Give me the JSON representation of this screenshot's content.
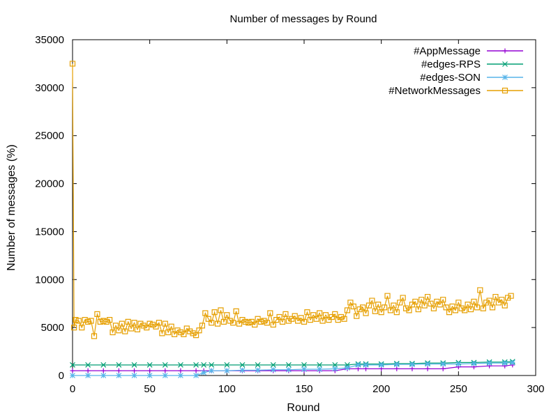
{
  "chart_data": {
    "type": "line",
    "title": "Number of messages by Round",
    "xlabel": "Round",
    "ylabel": "Number of messages (%)",
    "xlim": [
      0,
      300
    ],
    "ylim": [
      0,
      35000
    ],
    "xticks": [
      0,
      50,
      100,
      150,
      200,
      250,
      300
    ],
    "yticks": [
      0,
      5000,
      10000,
      15000,
      20000,
      25000,
      30000,
      35000
    ],
    "grid": false,
    "legend_position": "top-right",
    "series": [
      {
        "name": "#AppMessage",
        "color": "#9400d3",
        "marker": "plus",
        "x": [
          0,
          10,
          20,
          30,
          40,
          50,
          60,
          70,
          80,
          85,
          90,
          100,
          110,
          120,
          130,
          140,
          150,
          160,
          170,
          178,
          185,
          190,
          200,
          210,
          220,
          230,
          240,
          250,
          260,
          270,
          280,
          285
        ],
        "y": [
          500,
          500,
          500,
          500,
          500,
          500,
          500,
          500,
          500,
          500,
          500,
          500,
          500,
          500,
          500,
          500,
          500,
          500,
          500,
          700,
          700,
          700,
          700,
          700,
          700,
          700,
          700,
          900,
          900,
          1000,
          1000,
          1100
        ]
      },
      {
        "name": "#edges-RPS",
        "color": "#009e73",
        "marker": "cross",
        "x": [
          0,
          10,
          20,
          30,
          40,
          50,
          60,
          70,
          80,
          85,
          90,
          100,
          110,
          120,
          130,
          140,
          150,
          160,
          170,
          178,
          185,
          190,
          200,
          210,
          220,
          230,
          240,
          250,
          260,
          270,
          280,
          285
        ],
        "y": [
          1100,
          1100,
          1100,
          1100,
          1100,
          1100,
          1100,
          1100,
          1100,
          1100,
          1100,
          1100,
          1100,
          1100,
          1100,
          1100,
          1100,
          1100,
          1100,
          1100,
          1200,
          1200,
          1200,
          1250,
          1250,
          1300,
          1300,
          1350,
          1350,
          1400,
          1400,
          1450
        ]
      },
      {
        "name": "#edges-SON",
        "color": "#56b4e9",
        "marker": "star",
        "x": [
          0,
          10,
          20,
          30,
          40,
          50,
          60,
          70,
          80,
          85,
          90,
          100,
          110,
          120,
          130,
          140,
          150,
          160,
          170,
          178,
          185,
          190,
          200,
          210,
          220,
          230,
          240,
          250,
          260,
          270,
          280,
          285
        ],
        "y": [
          0,
          0,
          0,
          0,
          0,
          0,
          0,
          0,
          0,
          300,
          500,
          500,
          550,
          550,
          600,
          600,
          650,
          650,
          700,
          800,
          1100,
          1100,
          1100,
          1150,
          1150,
          1200,
          1200,
          1200,
          1250,
          1300,
          1300,
          1350
        ]
      },
      {
        "name": "#NetworkMessages",
        "color": "#e69f00",
        "marker": "square",
        "x": [
          0,
          1,
          2,
          4,
          6,
          8,
          10,
          12,
          14,
          16,
          18,
          20,
          22,
          24,
          26,
          28,
          30,
          32,
          34,
          36,
          38,
          40,
          42,
          44,
          46,
          48,
          50,
          52,
          54,
          56,
          58,
          60,
          62,
          64,
          66,
          68,
          70,
          72,
          74,
          76,
          78,
          80,
          82,
          84,
          86,
          88,
          90,
          92,
          94,
          96,
          98,
          100,
          102,
          104,
          106,
          108,
          110,
          112,
          114,
          116,
          118,
          120,
          122,
          124,
          126,
          128,
          130,
          132,
          134,
          136,
          138,
          140,
          142,
          144,
          146,
          148,
          150,
          152,
          154,
          156,
          158,
          160,
          162,
          164,
          166,
          168,
          170,
          172,
          174,
          176,
          178,
          180,
          182,
          184,
          186,
          188,
          190,
          192,
          194,
          196,
          198,
          200,
          202,
          204,
          206,
          208,
          210,
          212,
          214,
          216,
          218,
          220,
          222,
          224,
          226,
          228,
          230,
          232,
          234,
          236,
          238,
          240,
          242,
          244,
          246,
          248,
          250,
          252,
          254,
          256,
          258,
          260,
          262,
          264,
          266,
          268,
          270,
          272,
          274,
          276,
          278,
          280,
          282,
          284
        ],
        "y": [
          32500,
          5000,
          5800,
          5700,
          5000,
          5800,
          5600,
          5700,
          4100,
          6400,
          5600,
          5700,
          5600,
          5800,
          4500,
          5200,
          4700,
          5400,
          4600,
          5600,
          4900,
          5500,
          4800,
          5400,
          5200,
          5000,
          5400,
          5300,
          5100,
          5500,
          4400,
          5400,
          4500,
          5100,
          4300,
          4700,
          4500,
          4300,
          4900,
          4600,
          4400,
          4200,
          4700,
          5200,
          6500,
          5900,
          5500,
          6600,
          5400,
          6800,
          5600,
          6300,
          5700,
          5500,
          6700,
          5400,
          5800,
          5600,
          5500,
          5600,
          5300,
          5900,
          5600,
          5700,
          5500,
          6500,
          5300,
          5800,
          6100,
          5600,
          6400,
          5700,
          5900,
          6200,
          5700,
          6000,
          5600,
          6600,
          5800,
          6300,
          5900,
          6500,
          5700,
          6300,
          5800,
          6100,
          6400,
          5800,
          6100,
          5900,
          6800,
          7600,
          7200,
          6200,
          6900,
          7100,
          6500,
          7300,
          7800,
          6700,
          7400,
          6600,
          7100,
          8300,
          6800,
          7300,
          6600,
          7600,
          8100,
          7000,
          6800,
          7400,
          7700,
          6900,
          7900,
          7300,
          8200,
          7500,
          7000,
          7700,
          7400,
          7900,
          7100,
          6600,
          7200,
          6800,
          7600,
          7000,
          6800,
          7400,
          6900,
          7700,
          7100,
          8900,
          7000,
          7600,
          7800,
          7100,
          8200,
          7600,
          7900,
          7300,
          8100,
          8300
        ]
      }
    ]
  }
}
